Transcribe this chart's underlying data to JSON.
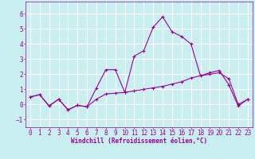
{
  "xlabel": "Windchill (Refroidissement éolien,°C)",
  "background_color": "#c8eef0",
  "grid_color": "#ffffff",
  "line_color": "#990099",
  "xlim": [
    -0.5,
    23.5
  ],
  "ylim": [
    -1.5,
    6.8
  ],
  "yticks": [
    -1,
    0,
    1,
    2,
    3,
    4,
    5,
    6
  ],
  "xticks": [
    0,
    1,
    2,
    3,
    4,
    5,
    6,
    7,
    8,
    9,
    10,
    11,
    12,
    13,
    14,
    15,
    16,
    17,
    18,
    19,
    20,
    21,
    22,
    23
  ],
  "curve1_x": [
    0,
    1,
    2,
    3,
    4,
    5,
    6,
    7,
    8,
    9,
    10,
    11,
    12,
    13,
    14,
    15,
    16,
    17,
    18,
    19,
    20,
    21,
    22,
    23
  ],
  "curve1_y": [
    0.5,
    0.65,
    -0.1,
    0.35,
    -0.35,
    -0.05,
    -0.15,
    1.1,
    2.3,
    2.3,
    0.8,
    3.2,
    3.55,
    5.1,
    5.8,
    4.8,
    4.5,
    4.0,
    1.9,
    2.1,
    2.25,
    1.3,
    -0.1,
    0.35
  ],
  "curve2_x": [
    0,
    1,
    2,
    3,
    4,
    5,
    6,
    7,
    8,
    9,
    10,
    11,
    12,
    13,
    14,
    15,
    16,
    17,
    18,
    19,
    20,
    21,
    22,
    23
  ],
  "curve2_y": [
    0.5,
    0.65,
    -0.1,
    0.35,
    -0.35,
    -0.05,
    -0.15,
    0.35,
    0.7,
    0.75,
    0.8,
    0.9,
    1.0,
    1.1,
    1.2,
    1.35,
    1.5,
    1.75,
    1.9,
    2.0,
    2.1,
    1.7,
    0.0,
    0.35
  ],
  "tick_fontsize": 5.5,
  "xlabel_fontsize": 5.5
}
